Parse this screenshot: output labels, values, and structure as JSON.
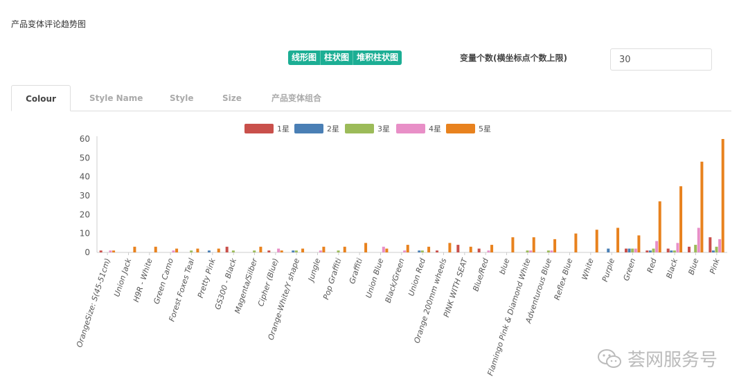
{
  "page": {
    "title": "产品变体评论趋势图"
  },
  "toolbar": {
    "chart_types": [
      "线形图",
      "柱状图",
      "堆积柱状图"
    ],
    "variable_label": "变量个数(横坐标点个数上限)",
    "variable_value": "30"
  },
  "tabs": [
    {
      "label": "Colour",
      "active": true
    },
    {
      "label": "Style Name",
      "active": false
    },
    {
      "label": "Style",
      "active": false
    },
    {
      "label": "Size",
      "active": false
    },
    {
      "label": "产品变体组合",
      "active": false
    }
  ],
  "watermark": {
    "text": "荟网服务号"
  },
  "chart_data": {
    "type": "bar",
    "ylim": [
      0,
      60
    ],
    "yticks": [
      0,
      10,
      20,
      30,
      40,
      50,
      60
    ],
    "grid": false,
    "legend_position": "top",
    "categories": [
      "OrangeSize: S(45-51cm)",
      "Union Jack",
      "H9R - White",
      "Green Camo",
      "Forest Foxes Teal",
      "Pretty Pink",
      "GS300 - Black",
      "Magenta/Silber",
      "Cipher (Blue)",
      "Orange-White/Y shape",
      "Jungle",
      "Pop Graffiti",
      "Graffiti",
      "Union Blue",
      "Black/Green",
      "Union Red",
      "Orange 200mm wheels",
      "PINK WITH SEAT",
      "Blue/Red",
      "blue",
      "Flamingo Pink & Diamond White",
      "Adventurous Blue",
      "Reflex Blue",
      "White",
      "Purple",
      "Green",
      "Red",
      "Black",
      "Blue",
      "Pink"
    ],
    "series": [
      {
        "name": "1星",
        "color": "#c9504b",
        "values": [
          1,
          0,
          0,
          0,
          0,
          0,
          3,
          0,
          1,
          0,
          0,
          0,
          0,
          0,
          0,
          0,
          1,
          4,
          2,
          0,
          0,
          0,
          0,
          0,
          0,
          2,
          1,
          2,
          3,
          8
        ]
      },
      {
        "name": "2星",
        "color": "#4a7fb5",
        "values": [
          0,
          0,
          0,
          0,
          0,
          1,
          0,
          0,
          0,
          1,
          0,
          0,
          0,
          0,
          0,
          1,
          0,
          0,
          0,
          0,
          0,
          0,
          0,
          0,
          2,
          2,
          1,
          1,
          0,
          1
        ]
      },
      {
        "name": "3星",
        "color": "#9cbb59",
        "values": [
          0,
          0,
          0,
          0,
          1,
          0,
          1,
          1,
          0,
          1,
          0,
          1,
          0,
          0,
          0,
          1,
          0,
          0,
          0,
          0,
          1,
          1,
          0,
          0,
          0,
          2,
          2,
          1,
          4,
          3
        ]
      },
      {
        "name": "4星",
        "color": "#e88fc7",
        "values": [
          1,
          0,
          0,
          1,
          0,
          0,
          0,
          0,
          2,
          0,
          1,
          0,
          0,
          3,
          1,
          0,
          0,
          0,
          1,
          0,
          1,
          1,
          0,
          0,
          0,
          2,
          6,
          5,
          13,
          7
        ]
      },
      {
        "name": "5星",
        "color": "#e8821e",
        "values": [
          1,
          3,
          3,
          2,
          2,
          2,
          0,
          3,
          1,
          2,
          3,
          3,
          5,
          2,
          4,
          3,
          5,
          3,
          4,
          8,
          8,
          7,
          10,
          12,
          13,
          9,
          27,
          35,
          48,
          60
        ]
      }
    ]
  }
}
